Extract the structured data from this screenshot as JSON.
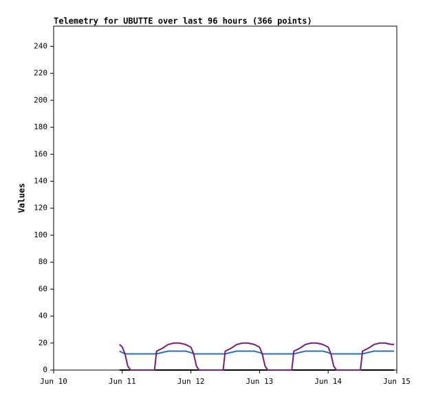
{
  "chart_data": {
    "type": "line",
    "title": "Telemetry for UBUTTE over last 96 hours (366 points)",
    "y_label": "Values",
    "x": [
      10.96,
      11,
      11.04,
      11.08,
      11.12,
      11.25,
      11.4,
      11.47,
      11.5,
      11.58,
      11.67,
      11.75,
      11.83,
      11.92,
      12,
      12.04,
      12.08,
      12.12,
      12.25,
      12.4,
      12.47,
      12.5,
      12.58,
      12.67,
      12.75,
      12.83,
      12.92,
      13,
      13.04,
      13.08,
      13.12,
      13.25,
      13.4,
      13.47,
      13.5,
      13.58,
      13.67,
      13.75,
      13.83,
      13.92,
      14,
      14.04,
      14.08,
      14.12,
      14.25,
      14.4,
      14.47,
      14.5,
      14.58,
      14.67,
      14.75,
      14.83,
      14.92,
      14.96
    ],
    "series": [
      {
        "color": "#000000",
        "values": [
          0,
          0,
          0,
          0,
          0,
          0,
          0,
          0,
          0,
          0,
          0,
          0,
          0,
          0,
          0,
          0,
          0,
          0,
          0,
          0,
          0,
          0,
          0,
          0,
          0,
          0,
          0,
          0,
          0,
          0,
          0,
          0,
          0,
          0,
          0,
          0,
          0,
          0,
          0,
          0,
          0,
          0,
          0,
          0,
          0,
          0,
          0,
          0,
          0,
          0,
          0,
          0,
          0,
          0
        ]
      },
      {
        "color": "#1f6fc4",
        "values": [
          14,
          13,
          12,
          12,
          12,
          12,
          12,
          12,
          12,
          13,
          14,
          14,
          14,
          14,
          13,
          12,
          12,
          12,
          12,
          12,
          12,
          12,
          13,
          14,
          14,
          14,
          14,
          13,
          12,
          12,
          12,
          12,
          12,
          12,
          12,
          13,
          14,
          14,
          14,
          14,
          13,
          12,
          12,
          12,
          12,
          12,
          12,
          12,
          13,
          14,
          14,
          14,
          14,
          14
        ]
      },
      {
        "color": "#7a1a7a",
        "values": [
          19,
          17,
          12,
          3,
          0,
          0,
          0,
          0,
          14,
          16,
          19,
          20,
          20,
          19,
          17,
          12,
          3,
          0,
          0,
          0,
          0,
          14,
          16,
          19,
          20,
          20,
          19,
          17,
          12,
          3,
          0,
          0,
          0,
          0,
          14,
          16,
          19,
          20,
          20,
          19,
          17,
          12,
          3,
          0,
          0,
          0,
          0,
          14,
          16,
          19,
          20,
          20,
          19,
          19
        ]
      }
    ],
    "xlim": [
      10,
      15
    ],
    "xticks": [
      {
        "value": 10,
        "label": "Jun 10"
      },
      {
        "value": 11,
        "label": "Jun 11"
      },
      {
        "value": 12,
        "label": "Jun 12"
      },
      {
        "value": 13,
        "label": "Jun 13"
      },
      {
        "value": 14,
        "label": "Jun 14"
      },
      {
        "value": 15,
        "label": "Jun 15"
      }
    ],
    "ylim": [
      0,
      255
    ],
    "yticks": [
      0,
      20,
      40,
      60,
      80,
      100,
      120,
      140,
      160,
      180,
      200,
      220,
      240
    ]
  }
}
